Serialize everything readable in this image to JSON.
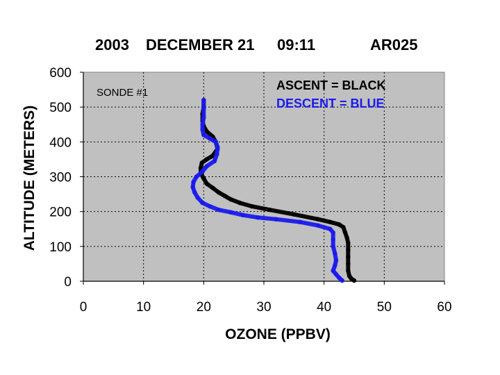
{
  "title_parts": [
    "2003",
    "DECEMBER 21",
    "09:11",
    "AR025"
  ],
  "annotation": "SONDE #1",
  "legend": [
    {
      "text": "ASCENT   = BLACK",
      "color": "#000000"
    },
    {
      "text": "DESCENT = BLUE",
      "color": "#1a1aee"
    }
  ],
  "colors": {
    "plot_background": "#c0c0c0",
    "ascent": "#000000",
    "descent": "#1a1aee"
  },
  "chart_data": {
    "type": "scatter",
    "xlabel": "OZONE (PPBV)",
    "ylabel": "ALTITUDE (METERS)",
    "xlim": [
      0,
      60
    ],
    "ylim": [
      0,
      600
    ],
    "xticks": [
      0,
      10,
      20,
      30,
      40,
      50,
      60
    ],
    "yticks": [
      0,
      100,
      200,
      300,
      400,
      500,
      600
    ],
    "grid": true,
    "series": [
      {
        "color": "#000000",
        "points": [
          [
            45.0,
            2
          ],
          [
            44.5,
            8
          ],
          [
            44.2,
            15
          ],
          [
            44.0,
            30
          ],
          [
            44.0,
            50
          ],
          [
            44.0,
            70
          ],
          [
            44.0,
            90
          ],
          [
            44.0,
            110
          ],
          [
            43.8,
            125
          ],
          [
            43.5,
            140
          ],
          [
            43.2,
            155
          ],
          [
            42.5,
            163
          ],
          [
            41.0,
            170
          ],
          [
            39.0,
            178
          ],
          [
            35.0,
            192
          ],
          [
            31.0,
            205
          ],
          [
            28.0,
            215
          ],
          [
            26.0,
            225
          ],
          [
            24.5,
            235
          ],
          [
            23.5,
            245
          ],
          [
            22.5,
            255
          ],
          [
            21.5,
            268
          ],
          [
            20.5,
            280
          ],
          [
            20.0,
            295
          ],
          [
            19.5,
            310
          ],
          [
            19.5,
            325
          ],
          [
            19.7,
            340
          ],
          [
            20.5,
            350
          ],
          [
            21.5,
            360
          ],
          [
            22.3,
            380
          ],
          [
            22.0,
            400
          ],
          [
            21.5,
            415
          ],
          [
            20.5,
            430
          ],
          [
            20.0,
            445
          ],
          [
            19.8,
            460
          ],
          [
            19.8,
            480
          ],
          [
            20.0,
            500
          ],
          [
            20.0,
            520
          ]
        ]
      },
      {
        "color": "#1a1aee",
        "points": [
          [
            43.0,
            2
          ],
          [
            42.5,
            10
          ],
          [
            42.0,
            20
          ],
          [
            41.5,
            30
          ],
          [
            41.8,
            45
          ],
          [
            42.0,
            60
          ],
          [
            41.8,
            80
          ],
          [
            41.5,
            100
          ],
          [
            41.5,
            120
          ],
          [
            41.5,
            140
          ],
          [
            41.0,
            150
          ],
          [
            39.0,
            160
          ],
          [
            36.0,
            170
          ],
          [
            32.0,
            178
          ],
          [
            29.0,
            183
          ],
          [
            26.5,
            190
          ],
          [
            24.5,
            198
          ],
          [
            22.5,
            205
          ],
          [
            21.0,
            215
          ],
          [
            19.8,
            225
          ],
          [
            19.0,
            240
          ],
          [
            18.5,
            255
          ],
          [
            18.2,
            270
          ],
          [
            18.3,
            285
          ],
          [
            18.8,
            300
          ],
          [
            19.8,
            315
          ],
          [
            20.5,
            330
          ],
          [
            21.8,
            345
          ],
          [
            22.2,
            365
          ],
          [
            22.3,
            385
          ],
          [
            22.0,
            400
          ],
          [
            21.0,
            410
          ],
          [
            20.0,
            420
          ],
          [
            19.8,
            435
          ],
          [
            19.8,
            450
          ],
          [
            20.0,
            470
          ],
          [
            20.0,
            495
          ],
          [
            20.0,
            520
          ]
        ]
      }
    ]
  }
}
